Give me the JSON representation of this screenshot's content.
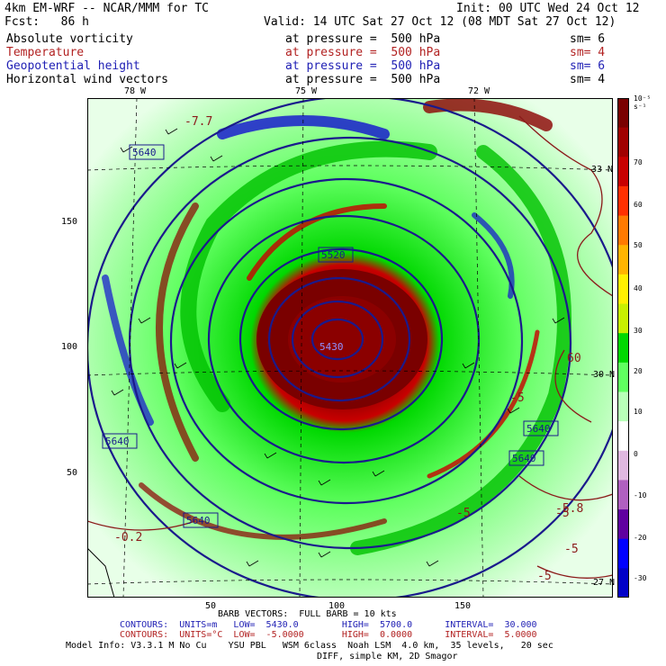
{
  "header": {
    "model": "4km EM-WRF -- NCAR/MMM for TC",
    "init": "Init: 00 UTC Wed 24 Oct 12",
    "fcst": "Fcst:   86 h",
    "valid": "Valid: 14 UTC Sat 27 Oct 12 (08 MDT Sat 27 Oct 12)"
  },
  "fields": [
    {
      "name": "Absolute vorticity",
      "level": "at pressure =  500 hPa",
      "sm": "sm= 6",
      "color": "#000000"
    },
    {
      "name": "Temperature",
      "level": "at pressure =  500 hPa",
      "sm": "sm= 4",
      "color": "#b22222"
    },
    {
      "name": "Geopotential height",
      "level": "at pressure =  500 hPa",
      "sm": "sm= 6",
      "color": "#1f1fb4"
    },
    {
      "name": "Horizontal wind vectors",
      "level": "at pressure =  500 hPa",
      "sm": "sm= 4",
      "color": "#000000"
    }
  ],
  "axes": {
    "lon_labels": [
      "78 W",
      "75 W",
      "72 W"
    ],
    "lat_labels": [
      "33 N",
      "30 N",
      "27 N"
    ],
    "x_ticks": [
      "50",
      "100",
      "150"
    ],
    "y_ticks": [
      "150",
      "100",
      "50"
    ]
  },
  "colorbar": {
    "unit": "10⁻⁵ s⁻¹",
    "labels": [
      "70",
      "60",
      "50",
      "40",
      "30",
      "20",
      "10",
      "0",
      "-10",
      "-20",
      "-30"
    ],
    "colors": [
      "#7a0000",
      "#a00000",
      "#c80000",
      "#ff3000",
      "#ff7a00",
      "#ffb400",
      "#fff000",
      "#c8f000",
      "#00d800",
      "#60ff60",
      "#b8ffb8",
      "#ffffff",
      "#e0b8e0",
      "#b060c0",
      "#6000a0",
      "#0000ff",
      "#0000c8"
    ]
  },
  "contour_labels": {
    "height": [
      "5640",
      "5520",
      "5430",
      "5640",
      "5640",
      "5640",
      "5640"
    ],
    "temperature": [
      "-7.7",
      "-5",
      "-5",
      "-5.8",
      "-5",
      "-5",
      "-5",
      "-0.2",
      "60"
    ]
  },
  "footer": {
    "barb": "BARB VECTORS:  FULL BARB = 10 kts",
    "contours1": "CONTOURS:  UNITS=m   LOW=  5430.0        HIGH=  5700.0      INTERVAL=  30.000",
    "contours2": "CONTOURS:  UNITS=°C  LOW=  -5.0000       HIGH=  0.0000      INTERVAL=  5.0000",
    "model_info": "Model Info: V3.3.1 M No Cu    YSU PBL   WSM 6class  Noah LSM  4.0 km,  35 levels,   20 sec",
    "diff": "DIFF, simple KM, 2D Smagor"
  }
}
